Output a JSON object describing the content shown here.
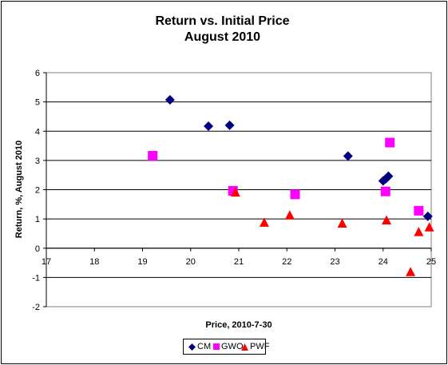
{
  "chart_data": {
    "type": "scatter",
    "title": "Return vs. Initial Price",
    "subtitle": "August 2010",
    "xlabel": "Price, 2010-7-30",
    "ylabel": "Return, %, August 2010",
    "xlim": [
      17,
      25
    ],
    "ylim": [
      -2,
      6
    ],
    "x_ticks": [
      "17",
      "18",
      "19",
      "20",
      "21",
      "22",
      "23",
      "24",
      "25"
    ],
    "y_ticks": [
      "-2",
      "-1",
      "0",
      "1",
      "2",
      "3",
      "4",
      "5",
      "6"
    ],
    "grid": "horizontal",
    "legend_position": "bottom",
    "series": [
      {
        "name": "CM",
        "marker": "diamond",
        "color": "#000080",
        "points": [
          [
            19.57,
            5.07
          ],
          [
            20.37,
            4.17
          ],
          [
            20.81,
            4.2
          ],
          [
            23.27,
            3.15
          ],
          [
            24.0,
            2.3
          ],
          [
            24.06,
            2.38
          ],
          [
            24.11,
            2.46
          ],
          [
            24.93,
            1.09
          ]
        ]
      },
      {
        "name": "GWO",
        "marker": "square",
        "color": "#FF00FF",
        "points": [
          [
            19.21,
            3.16
          ],
          [
            20.88,
            1.96
          ],
          [
            22.17,
            1.84
          ],
          [
            24.05,
            1.94
          ],
          [
            24.14,
            3.61
          ],
          [
            24.74,
            1.28
          ]
        ]
      },
      {
        "name": "PWF",
        "marker": "triangle",
        "color": "#FF0000",
        "points": [
          [
            20.93,
            1.9
          ],
          [
            21.53,
            0.87
          ],
          [
            22.06,
            1.12
          ],
          [
            23.15,
            0.84
          ],
          [
            24.07,
            0.95
          ],
          [
            24.57,
            -0.82
          ],
          [
            24.74,
            0.55
          ],
          [
            24.96,
            0.71
          ]
        ]
      }
    ]
  }
}
